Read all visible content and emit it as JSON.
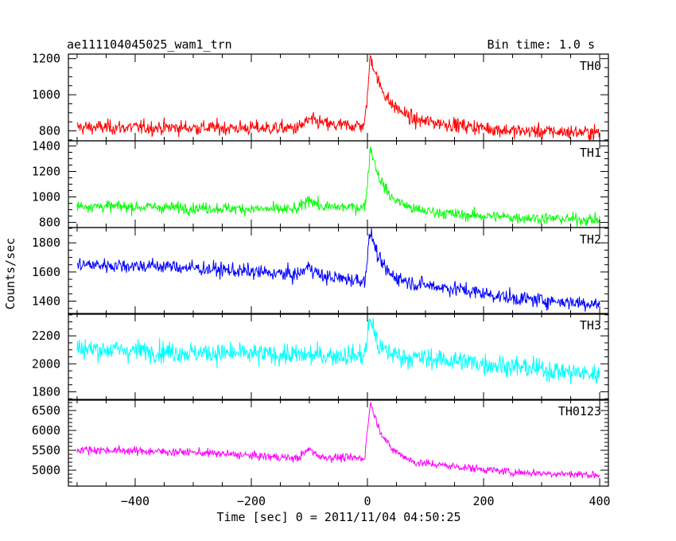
{
  "header": {
    "title": "ae111104045025_wam1_trn",
    "bin_time": "Bin time: 1.0 s"
  },
  "axes": {
    "xlabel": "Time [sec] 0 = 2011/11/04 04:50:25",
    "ylabel": "Counts/sec"
  },
  "chart_data": [
    {
      "type": "line",
      "name": "TH0",
      "color": "#ff0000",
      "xlim": [
        -515,
        415
      ],
      "ylim": [
        745,
        1225
      ],
      "yticks": [
        800,
        1000,
        1200
      ],
      "baseline": [
        [
          -500,
          820
        ],
        [
          -120,
          815
        ],
        [
          -100,
          860
        ],
        [
          -60,
          830
        ],
        [
          -5,
          830
        ],
        [
          0,
          1000
        ],
        [
          5,
          1215
        ],
        [
          20,
          1060
        ],
        [
          40,
          950
        ],
        [
          80,
          860
        ],
        [
          160,
          830
        ],
        [
          250,
          800
        ],
        [
          400,
          790
        ]
      ],
      "noise": 40
    },
    {
      "type": "line",
      "name": "TH1",
      "color": "#00ff00",
      "xlim": [
        -515,
        415
      ],
      "ylim": [
        760,
        1440
      ],
      "yticks": [
        800,
        1000,
        1200,
        1400
      ],
      "baseline": [
        [
          -500,
          930
        ],
        [
          -120,
          900
        ],
        [
          -100,
          990
        ],
        [
          -80,
          920
        ],
        [
          -5,
          920
        ],
        [
          0,
          1100
        ],
        [
          5,
          1390
        ],
        [
          20,
          1150
        ],
        [
          40,
          1000
        ],
        [
          80,
          900
        ],
        [
          160,
          860
        ],
        [
          250,
          840
        ],
        [
          400,
          820
        ]
      ],
      "noise": 45
    },
    {
      "type": "line",
      "name": "TH2",
      "color": "#0000ff",
      "xlim": [
        -515,
        415
      ],
      "ylim": [
        1310,
        1905
      ],
      "yticks": [
        1400,
        1600,
        1800
      ],
      "baseline": [
        [
          -500,
          1650
        ],
        [
          -350,
          1640
        ],
        [
          -120,
          1580
        ],
        [
          -100,
          1640
        ],
        [
          -80,
          1570
        ],
        [
          -5,
          1540
        ],
        [
          0,
          1700
        ],
        [
          5,
          1880
        ],
        [
          20,
          1680
        ],
        [
          40,
          1580
        ],
        [
          80,
          1520
        ],
        [
          160,
          1480
        ],
        [
          250,
          1420
        ],
        [
          400,
          1380
        ]
      ],
      "noise": 50
    },
    {
      "type": "line",
      "name": "TH3",
      "color": "#00ffff",
      "xlim": [
        -515,
        415
      ],
      "ylim": [
        1740,
        2360
      ],
      "yticks": [
        1800,
        2000,
        2200
      ],
      "baseline": [
        [
          -500,
          2110
        ],
        [
          -300,
          2080
        ],
        [
          -100,
          2060
        ],
        [
          -5,
          2060
        ],
        [
          0,
          2200
        ],
        [
          5,
          2330
        ],
        [
          20,
          2110
        ],
        [
          60,
          2050
        ],
        [
          160,
          2020
        ],
        [
          250,
          1980
        ],
        [
          400,
          1920
        ]
      ],
      "noise": 75
    },
    {
      "type": "line",
      "name": "TH0123",
      "color": "#ff00ff",
      "xlim": [
        -515,
        415
      ],
      "ylim": [
        4600,
        6780
      ],
      "yticks": [
        5000,
        5500,
        6000,
        6500
      ],
      "baseline": [
        [
          -500,
          5520
        ],
        [
          -300,
          5450
        ],
        [
          -120,
          5300
        ],
        [
          -100,
          5530
        ],
        [
          -80,
          5330
        ],
        [
          -5,
          5300
        ],
        [
          0,
          6000
        ],
        [
          5,
          6700
        ],
        [
          20,
          6050
        ],
        [
          40,
          5550
        ],
        [
          80,
          5200
        ],
        [
          160,
          5080
        ],
        [
          250,
          4950
        ],
        [
          400,
          4880
        ]
      ],
      "noise": 100
    }
  ],
  "xaxis": {
    "ticks": [
      -400,
      -200,
      0,
      200,
      400
    ],
    "tick_labels": [
      "−400",
      "−200",
      "0",
      "200",
      "400"
    ]
  }
}
